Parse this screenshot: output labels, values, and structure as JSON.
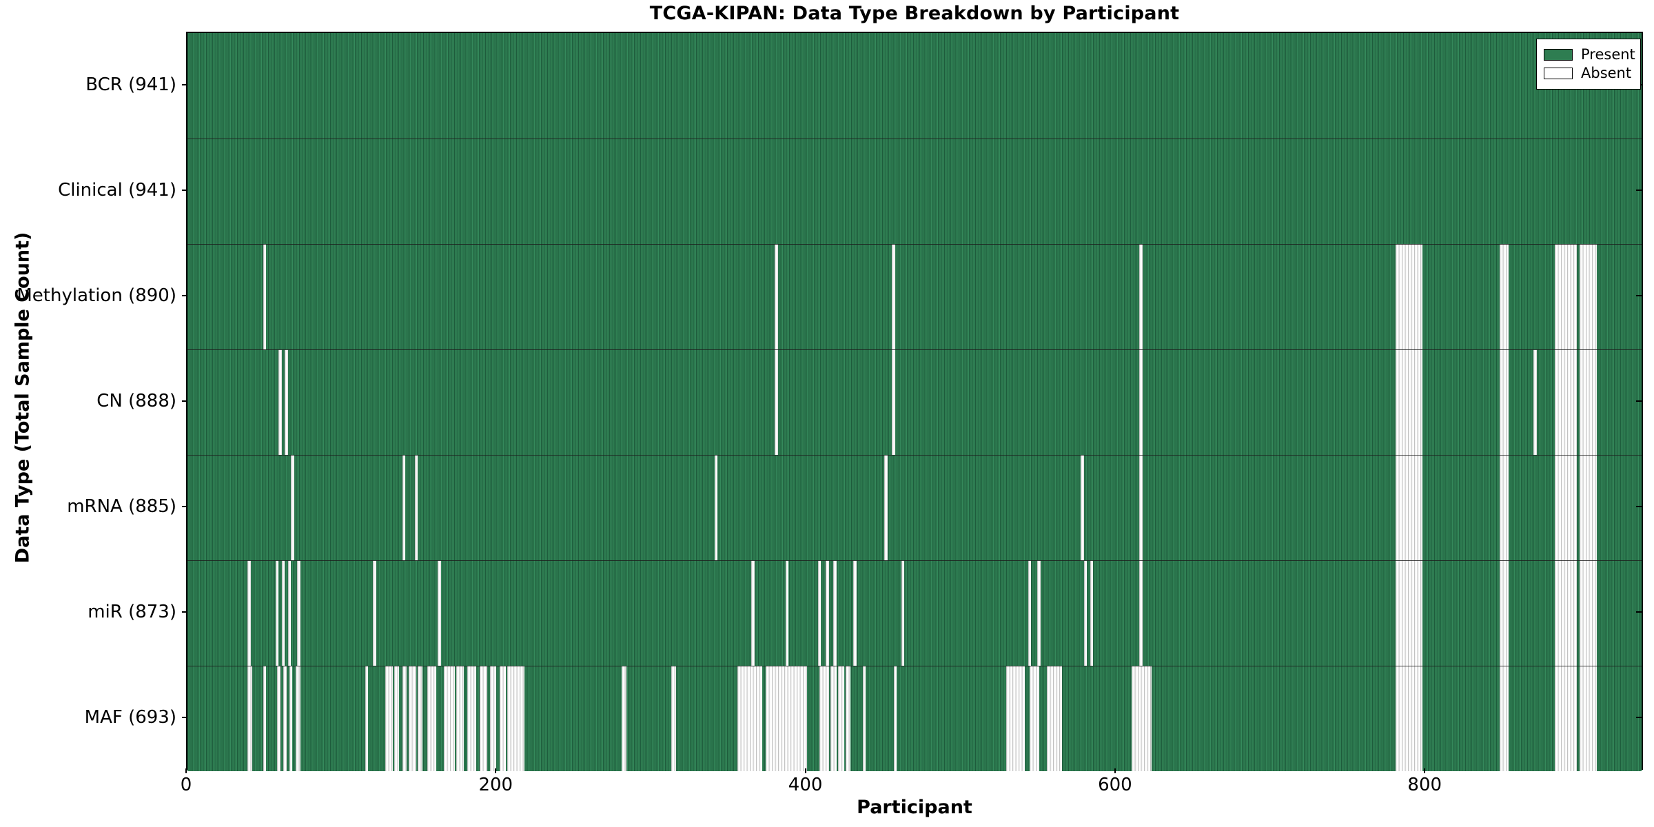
{
  "chart_data": {
    "type": "heatmap",
    "title": "TCGA-KIPAN: Data Type Breakdown by Participant",
    "xlabel": "Participant",
    "ylabel": "Data Type (Total Sample Count)",
    "xlim": [
      0,
      941
    ],
    "x_ticks": [
      0,
      200,
      400,
      600,
      800
    ],
    "grid": false,
    "legend_position": "upper-right",
    "legend": [
      {
        "label": "Present",
        "color": "#2e7d51"
      },
      {
        "label": "Absent",
        "color": "#ffffff"
      }
    ],
    "colors": {
      "present": "#2e7d51",
      "absent": "#ffffff",
      "row_separator": "#1c1c1c"
    },
    "rows": [
      {
        "name": "BCR",
        "total": 941,
        "label": "BCR (941)",
        "absent_ranges": []
      },
      {
        "name": "Clinical",
        "total": 941,
        "label": "Clinical (941)",
        "absent_ranges": []
      },
      {
        "name": "Methylation",
        "total": 890,
        "label": "Methylation (890)",
        "absent_ranges": [
          [
            49,
            51
          ],
          [
            380,
            382
          ],
          [
            456,
            458
          ],
          [
            616,
            618
          ],
          [
            782,
            799
          ],
          [
            849,
            855
          ],
          [
            885,
            899
          ],
          [
            901,
            912
          ]
        ]
      },
      {
        "name": "CN",
        "total": 888,
        "label": "CN (888)",
        "absent_ranges": [
          [
            59,
            61
          ],
          [
            63,
            65
          ],
          [
            380,
            382
          ],
          [
            456,
            458
          ],
          [
            616,
            618
          ],
          [
            782,
            799
          ],
          [
            849,
            855
          ],
          [
            871,
            873
          ],
          [
            885,
            899
          ],
          [
            901,
            912
          ]
        ]
      },
      {
        "name": "mRNA",
        "total": 885,
        "label": "mRNA (885)",
        "absent_ranges": [
          [
            67,
            69
          ],
          [
            139,
            141
          ],
          [
            147,
            149
          ],
          [
            341,
            343
          ],
          [
            451,
            453
          ],
          [
            578,
            580
          ],
          [
            616,
            618
          ],
          [
            782,
            799
          ],
          [
            849,
            855
          ],
          [
            885,
            899
          ],
          [
            901,
            912
          ]
        ]
      },
      {
        "name": "miR",
        "total": 873,
        "label": "miR (873)",
        "absent_ranges": [
          [
            39,
            41
          ],
          [
            57,
            59
          ],
          [
            61,
            63
          ],
          [
            65,
            67
          ],
          [
            71,
            73
          ],
          [
            120,
            122
          ],
          [
            162,
            164
          ],
          [
            365,
            367
          ],
          [
            387,
            389
          ],
          [
            408,
            410
          ],
          [
            413,
            415
          ],
          [
            418,
            420
          ],
          [
            431,
            433
          ],
          [
            462,
            464
          ],
          [
            544,
            546
          ],
          [
            550,
            552
          ],
          [
            580,
            582
          ],
          [
            584,
            586
          ],
          [
            616,
            618
          ],
          [
            782,
            799
          ],
          [
            849,
            855
          ],
          [
            885,
            899
          ],
          [
            901,
            912
          ]
        ]
      },
      {
        "name": "MAF",
        "total": 693,
        "label": "MAF (693)",
        "absent_ranges": [
          [
            39,
            42
          ],
          [
            49,
            51
          ],
          [
            58,
            60
          ],
          [
            62,
            64
          ],
          [
            66,
            68
          ],
          [
            70,
            73
          ],
          [
            115,
            117
          ],
          [
            128,
            133
          ],
          [
            134,
            137
          ],
          [
            139,
            142
          ],
          [
            143,
            148
          ],
          [
            149,
            152
          ],
          [
            155,
            161
          ],
          [
            166,
            173
          ],
          [
            174,
            179
          ],
          [
            181,
            187
          ],
          [
            189,
            194
          ],
          [
            196,
            200
          ],
          [
            202,
            206
          ],
          [
            207,
            218
          ],
          [
            281,
            284
          ],
          [
            313,
            316
          ],
          [
            356,
            372
          ],
          [
            374,
            401
          ],
          [
            409,
            415
          ],
          [
            416,
            420
          ],
          [
            421,
            425
          ],
          [
            426,
            429
          ],
          [
            437,
            439
          ],
          [
            457,
            459
          ],
          [
            530,
            542
          ],
          [
            545,
            551
          ],
          [
            556,
            566
          ],
          [
            611,
            624
          ],
          [
            782,
            799
          ],
          [
            849,
            855
          ],
          [
            885,
            899
          ],
          [
            901,
            912
          ]
        ]
      }
    ]
  }
}
